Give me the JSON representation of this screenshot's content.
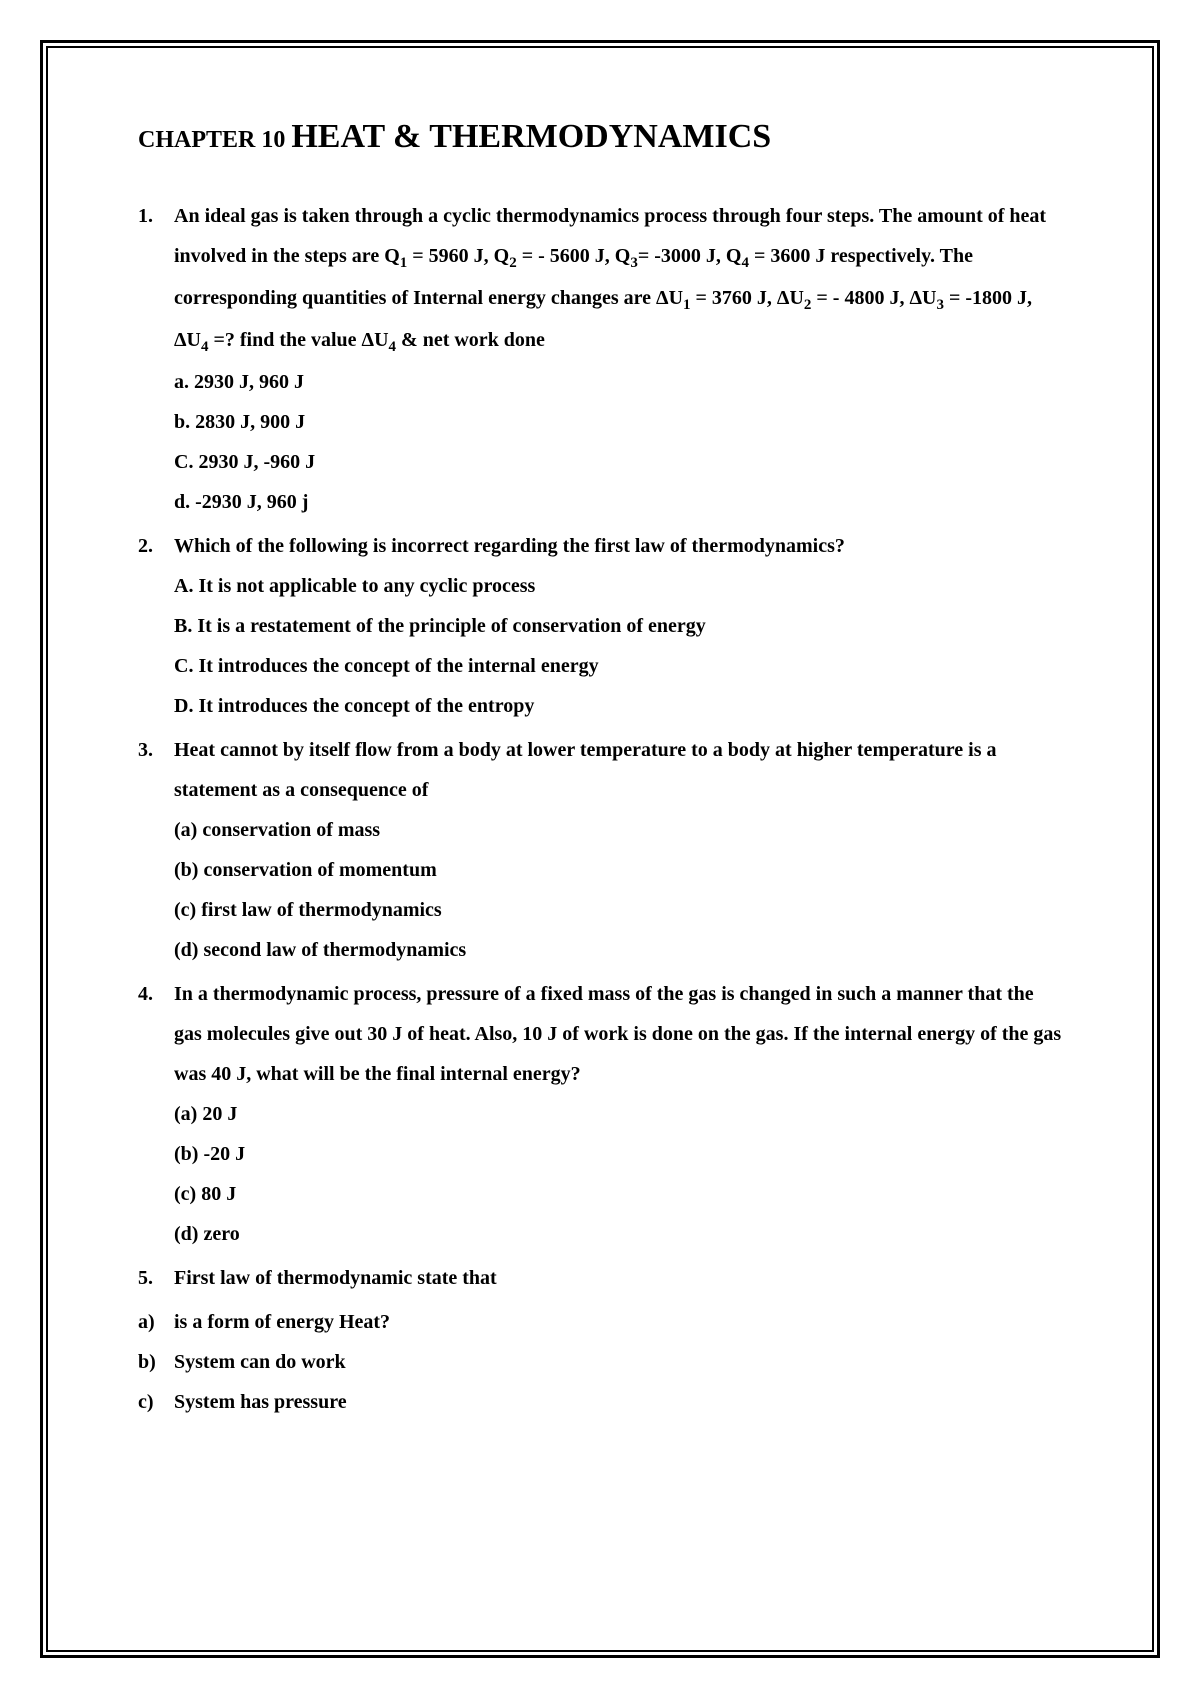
{
  "chapter": {
    "prefix": "CHAPTER 10 ",
    "title": "HEAT & THERMODYNAMICS"
  },
  "questions": [
    {
      "number": "1.",
      "text_html": "An ideal gas is taken through a cyclic thermodynamics process through four steps. The amount of heat involved in the steps are Q<sub>1</sub> = 5960 J, Q<sub>2</sub> = - 5600 J, Q<sub>3</sub>= -3000 J, Q<sub>4</sub> = 3600 J respectively. The corresponding quantities of Internal energy changes are ΔU<sub>1</sub> = 3760 J, ΔU<sub>2</sub> = - 4800 J, ΔU<sub>3</sub> = -1800 J, ΔU<sub>4</sub> =? find the value ΔU<sub>4</sub> & net work done",
      "options": [
        "a. 2930 J, 960 J",
        "b. 2830 J, 900 J",
        "C. 2930 J, -960 J",
        "d. -2930 J, 960 j"
      ]
    },
    {
      "number": "2.",
      "text_html": "Which of the following is incorrect regarding the first law of thermodynamics?",
      "options": [
        "A. It is not applicable to any cyclic process",
        "B. It is a restatement of the principle of conservation of energy",
        "C. It introduces the concept of the internal energy",
        "D. It introduces the concept of the entropy"
      ]
    },
    {
      "number": "3.",
      "text_html": "Heat cannot by itself flow from a body at lower temperature to a body at higher temperature is a statement as a consequence of",
      "options": [
        "(a) conservation of mass",
        "(b) conservation of momentum",
        "(c) first law of thermodynamics",
        "(d) second law of thermodynamics"
      ]
    },
    {
      "number": "4.",
      "text_html": "In a thermodynamic process, pressure of a fixed mass of the gas is changed in such a manner that the gas molecules give out 30 J of heat. Also, 10 J of work is done on the gas. If the internal energy of the gas was 40 J, what will be the final internal energy?",
      "options": [
        "(a) 20 J",
        "(b) -20 J",
        "(c) 80 J",
        "(d) zero"
      ]
    },
    {
      "number": "5.",
      "text_html": "First law of thermodynamic state that",
      "options": []
    }
  ],
  "outside_options": [
    {
      "label": "a)",
      "text": "is a form of energy Heat?"
    },
    {
      "label": "b)",
      "text": "System can do work"
    },
    {
      "label": "c)",
      "text": "System has pressure"
    }
  ],
  "style": {
    "text_color": "#000000",
    "background_color": "#ffffff",
    "border_color": "#000000",
    "body_fontsize_pt": 15,
    "title_fontsize_pt": 26,
    "prefix_fontsize_pt": 18,
    "font_family": "Times New Roman",
    "font_weight": "bold",
    "line_spacing": 2.0
  }
}
